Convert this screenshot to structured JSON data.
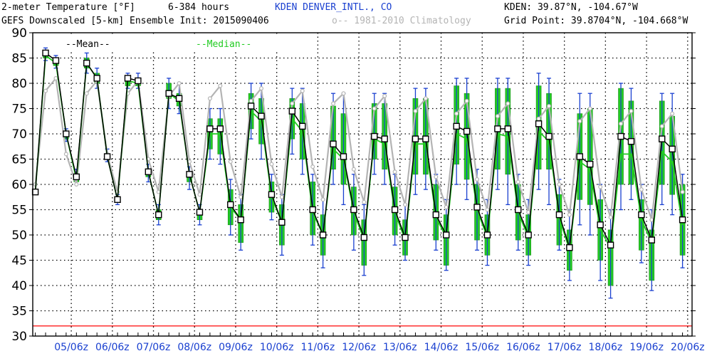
{
  "header": {
    "title": "2-meter Temperature [°F]",
    "hours": "6-384 hours",
    "station": "KDEN DENVER_INTL., CO",
    "station_coords": "KDEN: 39.87°N, -104.67°W",
    "subtitle": "GEFS Downscaled [5-km] Ensemble Init: 2015090406",
    "climo_label": "o-- 1981-2010 Climatology",
    "grid_point": "Grid Point: 39.8704°N, -104.668°W"
  },
  "legend": {
    "mean": "--Mean--",
    "median": "--Median--"
  },
  "colors": {
    "mean": "#000000",
    "median": "#22cc22",
    "climo": "#b4b4b4",
    "box": "#22cc22",
    "whisker": "#1a40d0",
    "freeze": "#ff3030",
    "header_blue": "#1a40d0",
    "grid": "#000000"
  },
  "chart_data": {
    "type": "line",
    "ylim": [
      30,
      90
    ],
    "yticks": [
      30,
      35,
      40,
      45,
      50,
      55,
      60,
      65,
      70,
      75,
      80,
      85,
      90
    ],
    "x_labels": [
      "05/06z",
      "06/06z",
      "07/06z",
      "08/06z",
      "09/06z",
      "10/06z",
      "11/06z",
      "12/06z",
      "13/06z",
      "14/06z",
      "15/06z",
      "16/06z",
      "17/06z",
      "18/06z",
      "19/06z",
      "20/06z"
    ],
    "x_label_index": [
      3,
      7,
      11,
      15,
      19,
      23,
      27,
      31,
      35,
      39,
      43,
      47,
      51,
      55,
      59,
      63
    ],
    "forecast_hours": [
      6,
      12,
      18,
      24,
      30,
      36,
      42,
      48,
      54,
      60,
      66,
      72,
      78,
      84,
      90,
      96,
      102,
      108,
      114,
      120,
      126,
      132,
      138,
      144,
      150,
      156,
      162,
      168,
      174,
      180,
      186,
      192,
      198,
      204,
      210,
      216,
      222,
      228,
      234,
      240,
      246,
      252,
      258,
      264,
      270,
      276,
      282,
      288,
      294,
      300,
      306,
      312,
      318,
      324,
      330,
      336,
      342,
      348,
      354,
      360,
      366,
      372,
      378,
      384
    ],
    "freeze_line": 32,
    "grid": true,
    "series": [
      {
        "name": "Mean",
        "values": [
          58.5,
          86.0,
          84.5,
          70.0,
          61.5,
          84.0,
          81.0,
          65.5,
          57.0,
          81.0,
          80.5,
          62.5,
          54.0,
          78.0,
          77.0,
          62.0,
          54.5,
          71.0,
          71.0,
          56.0,
          53.0,
          75.5,
          73.5,
          58.0,
          52.5,
          74.5,
          71.5,
          55.0,
          50.0,
          68.0,
          65.5,
          55.0,
          49.5,
          69.5,
          69.0,
          55.0,
          49.5,
          69.0,
          69.0,
          54.0,
          50.0,
          71.5,
          70.5,
          55.5,
          50.0,
          71.0,
          71.0,
          55.0,
          50.0,
          72.0,
          69.5,
          54.0,
          47.5,
          65.5,
          64.0,
          52.0,
          48.0,
          69.5,
          68.5,
          54.0,
          49.0,
          69.0,
          67.0,
          53.0
        ]
      },
      {
        "name": "Median",
        "values": [
          58.5,
          85.5,
          84.0,
          70.0,
          61.0,
          84.0,
          81.0,
          65.5,
          57.0,
          80.5,
          80.0,
          62.5,
          54.0,
          78.0,
          76.5,
          62.0,
          54.5,
          70.0,
          70.0,
          55.5,
          53.0,
          74.5,
          72.5,
          57.5,
          52.5,
          73.0,
          70.5,
          54.5,
          50.0,
          67.0,
          65.0,
          54.5,
          49.0,
          69.0,
          68.0,
          54.5,
          49.0,
          68.0,
          68.0,
          53.5,
          49.5,
          70.0,
          69.0,
          55.0,
          49.5,
          70.0,
          69.5,
          54.5,
          49.5,
          70.5,
          68.5,
          53.5,
          47.0,
          64.5,
          63.0,
          51.0,
          47.5,
          66.0,
          66.0,
          53.0,
          48.5,
          66.5,
          64.5,
          52.0
        ]
      },
      {
        "name": "1981-2010 Climatology",
        "values": [
          60.0,
          78.5,
          81.0,
          66.0,
          60.0,
          78.0,
          80.5,
          66.0,
          58.5,
          78.0,
          80.5,
          65.0,
          58.5,
          77.5,
          80.0,
          64.5,
          58.0,
          77.0,
          79.5,
          64.5,
          57.5,
          76.5,
          79.0,
          64.0,
          57.5,
          76.0,
          78.5,
          63.5,
          57.0,
          76.0,
          78.0,
          63.0,
          56.5,
          75.0,
          77.5,
          62.5,
          56.0,
          74.5,
          77.0,
          61.5,
          55.5,
          74.0,
          76.5,
          61.0,
          55.0,
          73.5,
          76.0,
          60.5,
          54.5,
          73.0,
          75.5,
          60.0,
          54.0,
          72.5,
          75.0,
          59.5,
          53.5,
          72.0,
          74.5,
          59.0,
          53.0,
          71.5,
          74.0,
          58.5
        ]
      }
    ],
    "whisker_low": [
      58,
      84.5,
      83,
      68.5,
      60,
      82,
      79,
      64.5,
      56,
      79,
      79,
      60.5,
      52,
      75,
      74,
      59,
      52,
      65,
      64,
      50,
      47,
      69,
      65,
      53,
      46,
      66,
      62,
      48,
      43.5,
      60,
      56,
      47,
      42,
      62,
      60,
      48,
      45,
      58,
      59,
      47,
      43,
      60,
      57,
      47,
      44,
      59,
      56,
      47,
      44,
      59,
      56,
      47,
      41,
      52,
      50,
      41,
      37.5,
      55,
      57,
      44.5,
      39,
      56,
      54,
      43.5
    ],
    "whisker_high": [
      59,
      87,
      85.5,
      71,
      63,
      86,
      83,
      67,
      58,
      82,
      82,
      64,
      56,
      81,
      80,
      63.5,
      56,
      75,
      75,
      61,
      58,
      80,
      80,
      62,
      58,
      79,
      79,
      62,
      57,
      78,
      78,
      62,
      56,
      78,
      78,
      62,
      56,
      79,
      79,
      62,
      57,
      81,
      81,
      63,
      57,
      81,
      81,
      62,
      57,
      82,
      81,
      61,
      55,
      78,
      78,
      60,
      55,
      80,
      79,
      60,
      55,
      78,
      78,
      62
    ],
    "box_low": [
      58.5,
      85,
      83.5,
      69,
      60.5,
      83,
      80,
      65,
      56.5,
      79.5,
      79.5,
      61.5,
      53,
      77,
      75.5,
      60.5,
      53,
      67,
      66,
      52,
      48.5,
      71,
      68,
      54.5,
      48,
      69,
      65,
      50,
      46,
      63,
      60,
      50,
      44,
      65,
      63,
      50,
      46,
      62,
      62,
      49,
      44,
      64,
      61,
      49,
      46,
      63,
      62,
      49,
      46,
      63,
      63,
      48,
      43,
      57,
      56,
      45,
      40,
      60,
      60,
      47,
      41,
      60,
      58,
      46
    ],
    "box_high": [
      58.5,
      86,
      84.5,
      70.5,
      62,
      85,
      82,
      66,
      57.5,
      81,
      81,
      63,
      55,
      80,
      78,
      62.5,
      55,
      73,
      73,
      59,
      56,
      78,
      77,
      60.5,
      56,
      77,
      76,
      60.5,
      54,
      75.5,
      74,
      59.5,
      53,
      76,
      76,
      59.5,
      53,
      77,
      77,
      60,
      54,
      79.5,
      78,
      60,
      54,
      79,
      79,
      60,
      54,
      79.5,
      78,
      58,
      51,
      74,
      75,
      57,
      51,
      79,
      76.5,
      57,
      51,
      76.5,
      73.5,
      60
    ]
  }
}
